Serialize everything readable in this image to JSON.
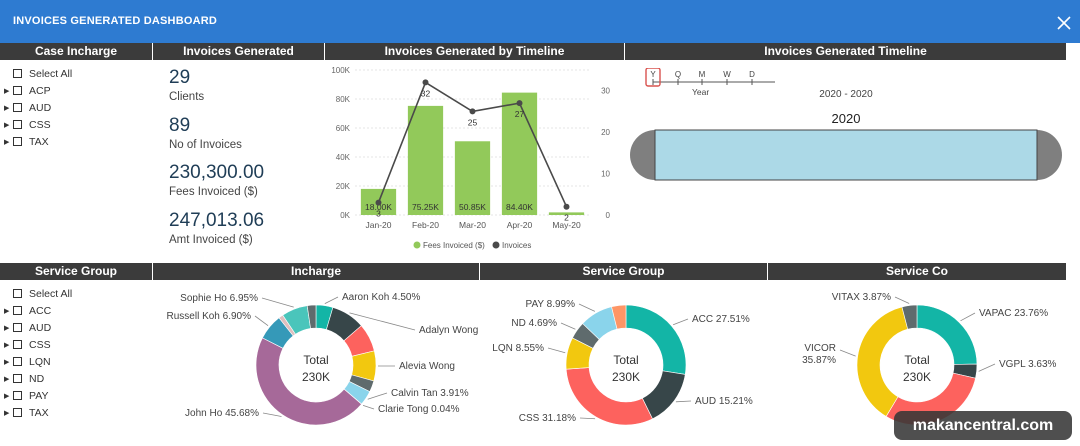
{
  "window": {
    "title": "INVOICES GENERATED DASHBOARD"
  },
  "headers": {
    "case_incharge": "Case Incharge",
    "invoices_generated": "Invoices Generated",
    "by_timeline": "Invoices Generated by Timeline",
    "timeline": "Invoices Generated Timeline",
    "service_group_slicer": "Service Group",
    "incharge": "Incharge",
    "service_group": "Service Group",
    "service_co": "Service Co"
  },
  "case_incharge_slicer": {
    "select_all": "Select All",
    "items": [
      "ACP",
      "AUD",
      "CSS",
      "TAX"
    ]
  },
  "service_group_slicer": {
    "select_all": "Select All",
    "items": [
      "ACC",
      "AUD",
      "CSS",
      "LQN",
      "ND",
      "PAY",
      "TAX"
    ]
  },
  "kpis": [
    {
      "value": "29",
      "label": "Clients"
    },
    {
      "value": "89",
      "label": "No of Invoices"
    },
    {
      "value": "230,300.00",
      "label": "Fees Invoiced ($)"
    },
    {
      "value": "247,013.06",
      "label": "Amt Invoiced ($)"
    }
  ],
  "chart_data": [
    {
      "type": "bar",
      "categories": [
        "Jan-20",
        "Feb-20",
        "Mar-20",
        "Apr-20",
        "May-20"
      ],
      "series": [
        {
          "name": "Fees Invoiced ($)",
          "values": [
            18000,
            75250,
            50850,
            84400,
            1800
          ],
          "labels": [
            "18.00K",
            "75.25K",
            "50.85K",
            "84.40K",
            ""
          ],
          "color": "#92c95a"
        },
        {
          "name": "Invoices",
          "values": [
            3,
            32,
            25,
            27,
            2
          ],
          "labels": [
            "3",
            "32",
            "25",
            "27",
            "2"
          ],
          "color": "#4a4a4a",
          "axis": "right"
        }
      ],
      "ylim": [
        0,
        100000
      ],
      "y_ticks": [
        "0K",
        "20K",
        "40K",
        "60K",
        "80K",
        "100K"
      ],
      "y2lim": [
        0,
        35
      ],
      "y2_ticks": [
        "0",
        "10",
        "20",
        "30"
      ],
      "legend": "bottom"
    },
    {
      "type": "pie",
      "title": "Incharge",
      "center_label": "Total",
      "center_value": "230K",
      "slices": [
        {
          "label": "Aaron Koh 4.50%",
          "value": 4.5,
          "color": "#13b5a6"
        },
        {
          "label": "Adalyn Wong",
          "value": 9.0,
          "color": "#374649"
        },
        {
          "label": "",
          "value": 7.5,
          "color": "#fd625e"
        },
        {
          "label": "Alevia Wong",
          "value": 8.0,
          "color": "#f2c80f"
        },
        {
          "label": "",
          "value": 3.0,
          "color": "#5f6b6d"
        },
        {
          "label": "Calvin Tan 3.91%",
          "value": 3.91,
          "color": "#8ad4eb"
        },
        {
          "label": "Clarie Tong 0.04%",
          "value": 0.04,
          "color": "#fe9666"
        },
        {
          "label": "John Ho 45.68%",
          "value": 45.68,
          "color": "#a66999"
        },
        {
          "label": "Russell Koh 6.90%",
          "value": 6.9,
          "color": "#3599b8"
        },
        {
          "label": "",
          "value": 1.2,
          "color": "#dfbfbf"
        },
        {
          "label": "Sophie Ho 6.95%",
          "value": 6.95,
          "color": "#4ac5bb"
        },
        {
          "label": "",
          "value": 2.32,
          "color": "#5f6b6d"
        }
      ]
    },
    {
      "type": "pie",
      "title": "Service Group",
      "center_label": "Total",
      "center_value": "230K",
      "slices": [
        {
          "label": "ACC 27.51%",
          "value": 27.51,
          "color": "#13b5a6"
        },
        {
          "label": "AUD 15.21%",
          "value": 15.21,
          "color": "#374649"
        },
        {
          "label": "CSS 31.18%",
          "value": 31.18,
          "color": "#fd625e"
        },
        {
          "label": "LQN 8.55%",
          "value": 8.55,
          "color": "#f2c80f"
        },
        {
          "label": "ND 4.69%",
          "value": 4.69,
          "color": "#5f6b6d"
        },
        {
          "label": "PAY 8.99%",
          "value": 8.99,
          "color": "#8ad4eb"
        },
        {
          "label": "",
          "value": 3.87,
          "color": "#fe9666"
        }
      ]
    },
    {
      "type": "pie",
      "title": "Service Co",
      "center_label": "Total",
      "center_value": "230K",
      "slices": [
        {
          "label": "VAPAC 23.76%",
          "value": 23.76,
          "color": "#13b5a6"
        },
        {
          "label": "VGPL 3.63%",
          "value": 3.63,
          "color": "#374649"
        },
        {
          "label": "",
          "value": 28.87,
          "color": "#fd625e"
        },
        {
          "label": "VICOR 35.87%",
          "value": 35.87,
          "color": "#f2c80f"
        },
        {
          "label": "VITAX 3.87%",
          "value": 3.87,
          "color": "#5f6b6d"
        }
      ]
    }
  ],
  "timeline_slicer": {
    "granularities": [
      "Y",
      "Q",
      "M",
      "W",
      "D"
    ],
    "selected_granularity": "Y",
    "granularity_label": "Year",
    "range_label": "2020 - 2020",
    "bar_label": "2020"
  },
  "watermark": "makancentral.com"
}
